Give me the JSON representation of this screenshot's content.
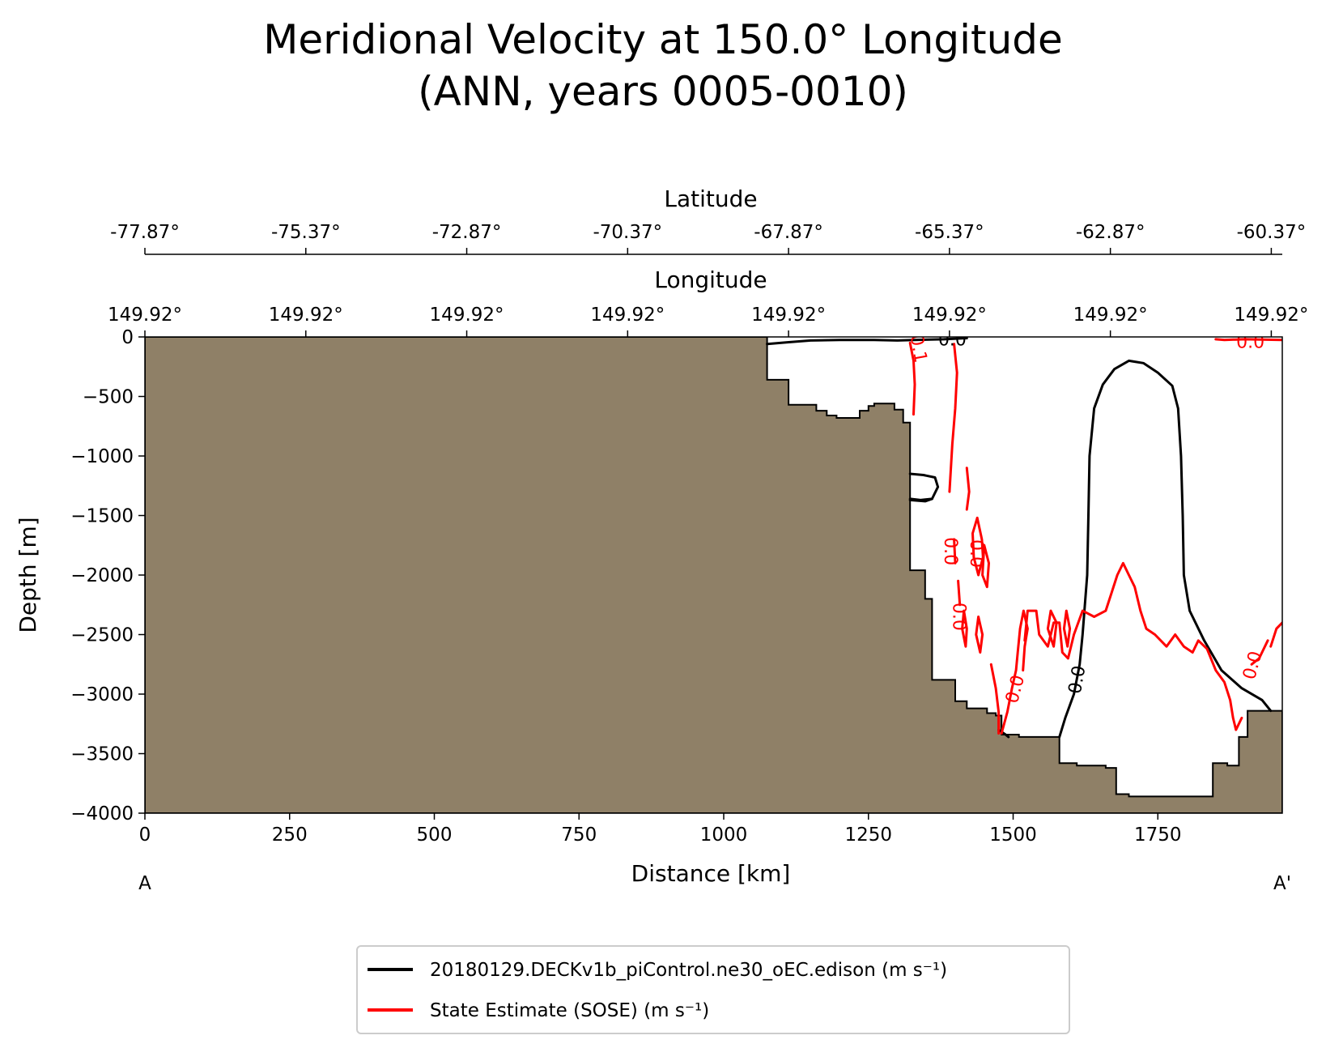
{
  "chart_data": {
    "type": "contour",
    "title_line1": "Meridional Velocity at 150.0° Longitude",
    "title_line2": "(ANN, years 0005-0010)",
    "xlabel": "Distance [km]",
    "ylabel": "Depth [m]",
    "xlim": [
      0,
      1965
    ],
    "ylim": [
      -4000,
      0
    ],
    "x_ticks": [
      0,
      250,
      500,
      750,
      1000,
      1250,
      1500,
      1750
    ],
    "x_tick_labels": [
      "0",
      "250",
      "500",
      "750",
      "1000",
      "1250",
      "1500",
      "1750"
    ],
    "y_ticks": [
      0,
      -500,
      -1000,
      -1500,
      -2000,
      -2500,
      -3000,
      -3500,
      -4000
    ],
    "y_tick_labels": [
      "0",
      "−500",
      "−1000",
      "−1500",
      "−2000",
      "−2500",
      "−3000",
      "−3500",
      "−4000"
    ],
    "start_label": "A",
    "end_label": "A'",
    "lon_axis": {
      "label": "Longitude",
      "positions": [
        0,
        278,
        556,
        834,
        1112,
        1390,
        1668,
        1946
      ],
      "tick_labels": [
        "149.92°",
        "149.92°",
        "149.92°",
        "149.92°",
        "149.92°",
        "149.92°",
        "149.92°",
        "149.92°"
      ]
    },
    "lat_axis": {
      "label": "Latitude",
      "positions": [
        0,
        278,
        556,
        834,
        1112,
        1390,
        1668,
        1946
      ],
      "tick_labels": [
        "-77.87°",
        "-75.37°",
        "-72.87°",
        "-70.37°",
        "-67.87°",
        "-65.37°",
        "-62.87°",
        "-60.37°"
      ]
    },
    "land_color": "#8f8067",
    "bathymetry": [
      [
        0,
        0
      ],
      [
        1075,
        0
      ],
      [
        1075,
        -360
      ],
      [
        1112,
        -360
      ],
      [
        1112,
        -570
      ],
      [
        1160,
        -570
      ],
      [
        1160,
        -620
      ],
      [
        1178,
        -620
      ],
      [
        1178,
        -660
      ],
      [
        1195,
        -660
      ],
      [
        1195,
        -680
      ],
      [
        1235,
        -680
      ],
      [
        1235,
        -620
      ],
      [
        1250,
        -620
      ],
      [
        1250,
        -580
      ],
      [
        1260,
        -580
      ],
      [
        1260,
        -560
      ],
      [
        1295,
        -560
      ],
      [
        1295,
        -610
      ],
      [
        1310,
        -610
      ],
      [
        1310,
        -720
      ],
      [
        1322,
        -720
      ],
      [
        1322,
        -1960
      ],
      [
        1348,
        -1960
      ],
      [
        1348,
        -2200
      ],
      [
        1360,
        -2200
      ],
      [
        1360,
        -2880
      ],
      [
        1400,
        -2880
      ],
      [
        1400,
        -3060
      ],
      [
        1420,
        -3060
      ],
      [
        1420,
        -3120
      ],
      [
        1455,
        -3120
      ],
      [
        1455,
        -3160
      ],
      [
        1470,
        -3160
      ],
      [
        1470,
        -3180
      ],
      [
        1480,
        -3180
      ],
      [
        1480,
        -3340
      ],
      [
        1510,
        -3340
      ],
      [
        1510,
        -3360
      ],
      [
        1580,
        -3360
      ],
      [
        1580,
        -3580
      ],
      [
        1610,
        -3580
      ],
      [
        1610,
        -3600
      ],
      [
        1660,
        -3600
      ],
      [
        1660,
        -3620
      ],
      [
        1678,
        -3620
      ],
      [
        1678,
        -3840
      ],
      [
        1700,
        -3840
      ],
      [
        1700,
        -3860
      ],
      [
        1845,
        -3860
      ],
      [
        1845,
        -3580
      ],
      [
        1870,
        -3580
      ],
      [
        1870,
        -3600
      ],
      [
        1890,
        -3600
      ],
      [
        1890,
        -3360
      ],
      [
        1905,
        -3360
      ],
      [
        1905,
        -3140
      ],
      [
        1965,
        -3140
      ],
      [
        1965,
        -4000
      ],
      [
        0,
        -4000
      ]
    ],
    "contour_labels": [
      {
        "text": "0.0",
        "x": 1395,
        "y": -30,
        "rotate": 0,
        "series": 0
      },
      {
        "text": "0.0",
        "x": 1612,
        "y": -2880,
        "rotate": -80,
        "series": 0
      },
      {
        "text": "0.1",
        "x": 1335,
        "y": -100,
        "rotate": 80,
        "series": 1
      },
      {
        "text": "0.0",
        "x": 1390,
        "y": -1800,
        "rotate": 90,
        "series": 1
      },
      {
        "text": "0.0",
        "x": 1435,
        "y": -1820,
        "rotate": 90,
        "series": 1
      },
      {
        "text": "0.0",
        "x": 1405,
        "y": -2350,
        "rotate": 90,
        "series": 1
      },
      {
        "text": "0.0",
        "x": 1505,
        "y": -2960,
        "rotate": -75,
        "series": 1
      },
      {
        "text": "0.0",
        "x": 1915,
        "y": -2760,
        "rotate": -75,
        "series": 1
      },
      {
        "text": "0.0",
        "x": 1910,
        "y": -50,
        "rotate": 0,
        "series": 1
      }
    ],
    "series": [
      {
        "name": "20180129.DECKv1b_piControl.ne30_oEC.edison (m s⁻¹)",
        "color": "#000000",
        "contours": [
          [
            [
              1075,
              -60
            ],
            [
              1110,
              -45
            ],
            [
              1150,
              -30
            ],
            [
              1200,
              -25
            ],
            [
              1260,
              -25
            ],
            [
              1300,
              -30
            ],
            [
              1330,
              -25
            ],
            [
              1380,
              -20
            ],
            [
              1420,
              -10
            ]
          ],
          [
            [
              1322,
              -1150
            ],
            [
              1345,
              -1160
            ],
            [
              1365,
              -1180
            ],
            [
              1370,
              -1260
            ],
            [
              1360,
              -1360
            ],
            [
              1340,
              -1370
            ],
            [
              1322,
              -1360
            ]
          ],
          [
            [
              1322,
              -1370
            ],
            [
              1348,
              -1380
            ],
            [
              1360,
              -1360
            ]
          ],
          [
            [
              1475,
              -3300
            ],
            [
              1487,
              -3340
            ],
            [
              1492,
              -3360
            ]
          ],
          [
            [
              1580,
              -3360
            ],
            [
              1590,
              -3200
            ],
            [
              1605,
              -3000
            ],
            [
              1615,
              -2750
            ],
            [
              1620,
              -2500
            ],
            [
              1628,
              -2000
            ],
            [
              1630,
              -1500
            ],
            [
              1632,
              -1000
            ],
            [
              1640,
              -600
            ],
            [
              1655,
              -400
            ],
            [
              1675,
              -270
            ],
            [
              1700,
              -200
            ],
            [
              1725,
              -220
            ],
            [
              1750,
              -300
            ],
            [
              1775,
              -410
            ],
            [
              1785,
              -600
            ],
            [
              1790,
              -1000
            ],
            [
              1793,
              -1500
            ],
            [
              1795,
              -2000
            ],
            [
              1805,
              -2300
            ],
            [
              1830,
              -2550
            ],
            [
              1860,
              -2800
            ],
            [
              1895,
              -2950
            ],
            [
              1930,
              -3050
            ],
            [
              1945,
              -3140
            ]
          ]
        ]
      },
      {
        "name": "State Estimate (SOSE) (m s⁻¹)",
        "color": "#ff0000",
        "contours": [
          [
            [
              1322,
              -50
            ],
            [
              1328,
              -200
            ],
            [
              1330,
              -400
            ],
            [
              1328,
              -650
            ]
          ],
          [
            [
              1398,
              -60
            ],
            [
              1403,
              -300
            ],
            [
              1400,
              -600
            ],
            [
              1395,
              -900
            ],
            [
              1390,
              -1300
            ]
          ],
          [
            [
              1420,
              -1100
            ],
            [
              1424,
              -1300
            ],
            [
              1420,
              -1450
            ]
          ],
          [
            [
              1398,
              -1700
            ],
            [
              1400,
              -1900
            ]
          ],
          [
            [
              1405,
              -2050
            ],
            [
              1408,
              -2250
            ]
          ],
          [
            [
              1438,
              -1520
            ],
            [
              1446,
              -1700
            ],
            [
              1448,
              -1850
            ],
            [
              1440,
              -2000
            ],
            [
              1432,
              -1850
            ],
            [
              1430,
              -1650
            ],
            [
              1438,
              -1520
            ]
          ],
          [
            [
              1450,
              -1750
            ],
            [
              1458,
              -1900
            ],
            [
              1455,
              -2100
            ],
            [
              1447,
              -2000
            ],
            [
              1450,
              -1750
            ]
          ],
          [
            [
              1415,
              -2300
            ],
            [
              1420,
              -2450
            ],
            [
              1418,
              -2600
            ],
            [
              1412,
              -2450
            ],
            [
              1415,
              -2300
            ]
          ],
          [
            [
              1440,
              -2350
            ],
            [
              1447,
              -2500
            ],
            [
              1443,
              -2650
            ],
            [
              1436,
              -2500
            ],
            [
              1440,
              -2350
            ]
          ],
          [
            [
              1462,
              -2750
            ],
            [
              1470,
              -2950
            ],
            [
              1475,
              -3150
            ],
            [
              1475,
              -3330
            ]
          ],
          [
            [
              1520,
              -2550
            ],
            [
              1525,
              -2300
            ],
            [
              1540,
              -2300
            ],
            [
              1545,
              -2500
            ],
            [
              1560,
              -2600
            ],
            [
              1570,
              -2400
            ],
            [
              1580,
              -2400
            ],
            [
              1585,
              -2650
            ],
            [
              1595,
              -2700
            ],
            [
              1605,
              -2500
            ],
            [
              1620,
              -2300
            ],
            [
              1640,
              -2350
            ],
            [
              1660,
              -2300
            ],
            [
              1670,
              -2150
            ],
            [
              1680,
              -2000
            ],
            [
              1690,
              -1900
            ],
            [
              1700,
              -2000
            ],
            [
              1710,
              -2100
            ],
            [
              1720,
              -2300
            ],
            [
              1730,
              -2450
            ],
            [
              1745,
              -2500
            ],
            [
              1765,
              -2600
            ],
            [
              1780,
              -2500
            ],
            [
              1795,
              -2600
            ],
            [
              1810,
              -2650
            ],
            [
              1820,
              -2550
            ],
            [
              1835,
              -2620
            ],
            [
              1850,
              -2800
            ],
            [
              1865,
              -2900
            ],
            [
              1875,
              -3050
            ],
            [
              1880,
              -3200
            ],
            [
              1885,
              -3300
            ],
            [
              1895,
              -3200
            ]
          ],
          [
            [
              1517,
              -2800
            ],
            [
              1520,
              -2600
            ],
            [
              1525,
              -2450
            ],
            [
              1518,
              -2300
            ],
            [
              1512,
              -2450
            ],
            [
              1508,
              -2650
            ],
            [
              1505,
              -2800
            ],
            [
              1498,
              -2950
            ],
            [
              1490,
              -3150
            ],
            [
              1480,
              -3330
            ]
          ],
          [
            [
              1565,
              -2300
            ],
            [
              1575,
              -2400
            ],
            [
              1570,
              -2600
            ],
            [
              1560,
              -2450
            ],
            [
              1565,
              -2300
            ]
          ],
          [
            [
              1592,
              -2300
            ],
            [
              1598,
              -2450
            ],
            [
              1594,
              -2600
            ],
            [
              1588,
              -2450
            ],
            [
              1592,
              -2300
            ]
          ],
          [
            [
              1945,
              -2600
            ],
            [
              1955,
              -2450
            ],
            [
              1965,
              -2400
            ]
          ],
          [
            [
              1912,
              -2750
            ],
            [
              1925,
              -2700
            ],
            [
              1940,
              -2550
            ]
          ],
          [
            [
              1850,
              -20
            ],
            [
              1865,
              -25
            ],
            [
              1900,
              -20
            ],
            [
              1965,
              -25
            ]
          ]
        ]
      }
    ]
  }
}
